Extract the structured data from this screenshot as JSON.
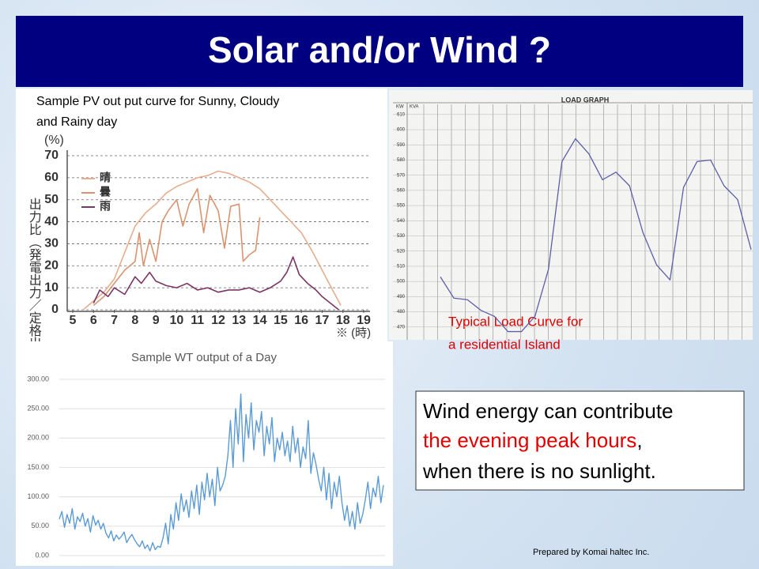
{
  "title": "Solar and/or Wind ?",
  "pv_panel": {
    "caption": [
      "Sample PV out put curve for Sunny, Cloudy",
      "and Rainy day"
    ],
    "chart": {
      "type": "line",
      "y_axis_label": "出力比（発電出力／定格出力）",
      "y_unit": "(%)",
      "x_unit": "※ (時)",
      "xlim": [
        5,
        19
      ],
      "xticks": [
        5,
        6,
        7,
        8,
        9,
        10,
        11,
        12,
        13,
        14,
        15,
        16,
        17,
        18,
        19
      ],
      "ylim": [
        0,
        70
      ],
      "yticks": [
        0,
        10,
        20,
        30,
        40,
        50,
        60,
        70
      ],
      "grid": true,
      "series": [
        {
          "name": "晴",
          "color": "#e6ad8e",
          "x": [
            5.5,
            6,
            6.5,
            7,
            7.5,
            8,
            8.5,
            9,
            9.5,
            10,
            10.5,
            11,
            11.5,
            12,
            12.5,
            13,
            13.5,
            14,
            14.5,
            15,
            15.5,
            16,
            16.5,
            17,
            17.5,
            17.9
          ],
          "values": [
            0,
            4,
            8,
            14,
            26,
            38,
            44,
            48,
            53,
            56,
            58,
            60,
            61,
            63,
            62,
            60,
            58,
            55,
            50,
            45,
            40,
            35,
            27,
            18,
            9,
            2
          ]
        },
        {
          "name": "曇",
          "color": "#d9946f",
          "x": [
            6,
            6.5,
            7,
            7.5,
            8,
            8.2,
            8.4,
            8.7,
            9,
            9.3,
            9.6,
            10,
            10.3,
            10.6,
            11,
            11.3,
            11.6,
            12,
            12.3,
            12.6,
            13,
            13.2,
            13.5,
            13.8,
            14
          ],
          "values": [
            2,
            6,
            12,
            18,
            22,
            35,
            20,
            32,
            22,
            40,
            45,
            50,
            38,
            48,
            55,
            35,
            52,
            45,
            28,
            47,
            48,
            22,
            25,
            27,
            42
          ]
        },
        {
          "name": "雨",
          "color": "#7b3565",
          "x": [
            6,
            6.3,
            6.7,
            7,
            7.5,
            8,
            8.3,
            8.7,
            9,
            9.5,
            10,
            10.5,
            11,
            11.5,
            12,
            12.5,
            13,
            13.5,
            14,
            14.5,
            15,
            15.3,
            15.6,
            15.9,
            16.3,
            16.7,
            17,
            17.4,
            17.8
          ],
          "values": [
            3,
            9,
            6,
            10,
            7,
            15,
            12,
            17,
            13,
            11,
            10,
            12,
            9,
            10,
            8,
            9,
            9,
            10,
            8,
            10,
            13,
            17,
            24,
            16,
            12,
            9,
            6,
            3,
            0
          ]
        }
      ]
    }
  },
  "load_panel": {
    "heading": "LOAD GRAPH",
    "column_headers": [
      "KW",
      "KVA"
    ],
    "chart": {
      "type": "line",
      "color": "#5c5fa8",
      "ylim": [
        460,
        612
      ],
      "yticks": [
        610,
        600,
        590,
        580,
        570,
        560,
        550,
        540,
        530,
        520,
        510,
        500,
        490,
        480,
        470
      ],
      "values": [
        503,
        489,
        488,
        481,
        477,
        467,
        467,
        477,
        508,
        579,
        594,
        584,
        567,
        572,
        563,
        532,
        511,
        501,
        562,
        579,
        580,
        563,
        554,
        521
      ]
    },
    "caption": [
      "Typical Load Curve for",
      "a residential Island"
    ]
  },
  "wt_panel": {
    "chart": {
      "type": "line",
      "title": "Sample WT output of a Day",
      "color": "#5b9bd5",
      "ylim": [
        0,
        300
      ],
      "yticks": [
        {
          "value": 0,
          "label": "0.00"
        },
        {
          "value": 50,
          "label": "50.00"
        },
        {
          "value": 100,
          "label": "100.00"
        },
        {
          "value": 150,
          "label": "150.00"
        },
        {
          "value": 200,
          "label": "200.00"
        },
        {
          "value": 250,
          "label": "250.00"
        },
        {
          "value": 300,
          "label": "300.00"
        }
      ],
      "grid": true,
      "values": [
        62,
        75,
        48,
        70,
        55,
        80,
        45,
        66,
        58,
        72,
        50,
        63,
        40,
        68,
        52,
        60,
        45,
        55,
        38,
        30,
        42,
        25,
        35,
        28,
        33,
        40,
        22,
        30,
        36,
        27,
        20,
        15,
        25,
        12,
        18,
        8,
        22,
        10,
        16,
        14,
        30,
        55,
        20,
        70,
        45,
        90,
        60,
        105,
        75,
        95,
        65,
        110,
        80,
        120,
        70,
        125,
        95,
        140,
        100,
        130,
        85,
        150,
        110,
        120,
        135,
        170,
        230,
        150,
        250,
        190,
        275,
        160,
        240,
        200,
        260,
        180,
        230,
        210,
        245,
        170,
        220,
        190,
        235,
        160,
        200,
        180,
        210,
        170,
        195,
        160,
        220,
        175,
        200,
        150,
        185,
        165,
        230,
        140,
        175,
        155,
        130,
        110,
        150,
        95,
        140,
        80,
        125,
        100,
        135,
        90,
        60,
        85,
        50,
        75,
        45,
        90,
        55,
        70,
        95,
        125,
        80,
        115,
        100,
        135,
        90,
        120
      ]
    }
  },
  "callout": {
    "line1": "Wind energy can contribute",
    "line2_highlight": "the evening peak hours",
    "line2_rest": ",",
    "line3": "when there is no sunlight."
  },
  "footer": "Prepared by Komai haltec Inc."
}
